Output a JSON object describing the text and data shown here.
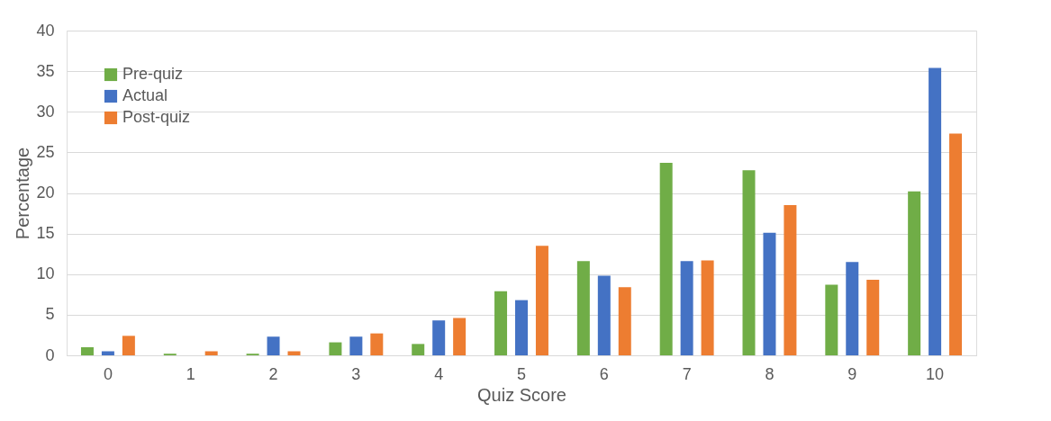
{
  "chart_data": {
    "type": "bar",
    "xlabel": "Quiz Score",
    "ylabel": "Percentage",
    "categories": [
      "0",
      "1",
      "2",
      "3",
      "4",
      "5",
      "6",
      "7",
      "8",
      "9",
      "10"
    ],
    "series": [
      {
        "name": "Pre-quiz",
        "color": "#70ad47",
        "values": [
          1.0,
          0.2,
          0.2,
          1.6,
          1.4,
          7.9,
          11.6,
          23.7,
          22.8,
          8.7,
          20.2
        ]
      },
      {
        "name": "Actual",
        "color": "#4472c4",
        "values": [
          0.5,
          0,
          2.3,
          2.3,
          4.3,
          6.8,
          9.8,
          11.6,
          15.1,
          11.5,
          35.4
        ]
      },
      {
        "name": "Post-quiz",
        "color": "#ed7d31",
        "values": [
          2.4,
          0.5,
          0.5,
          2.7,
          4.6,
          13.5,
          8.4,
          11.7,
          18.5,
          9.3,
          27.3
        ]
      }
    ],
    "ylim": [
      0,
      40
    ],
    "yticks": [
      0,
      5,
      10,
      15,
      20,
      25,
      30,
      35,
      40
    ],
    "grid": "y",
    "legend": "top left"
  }
}
